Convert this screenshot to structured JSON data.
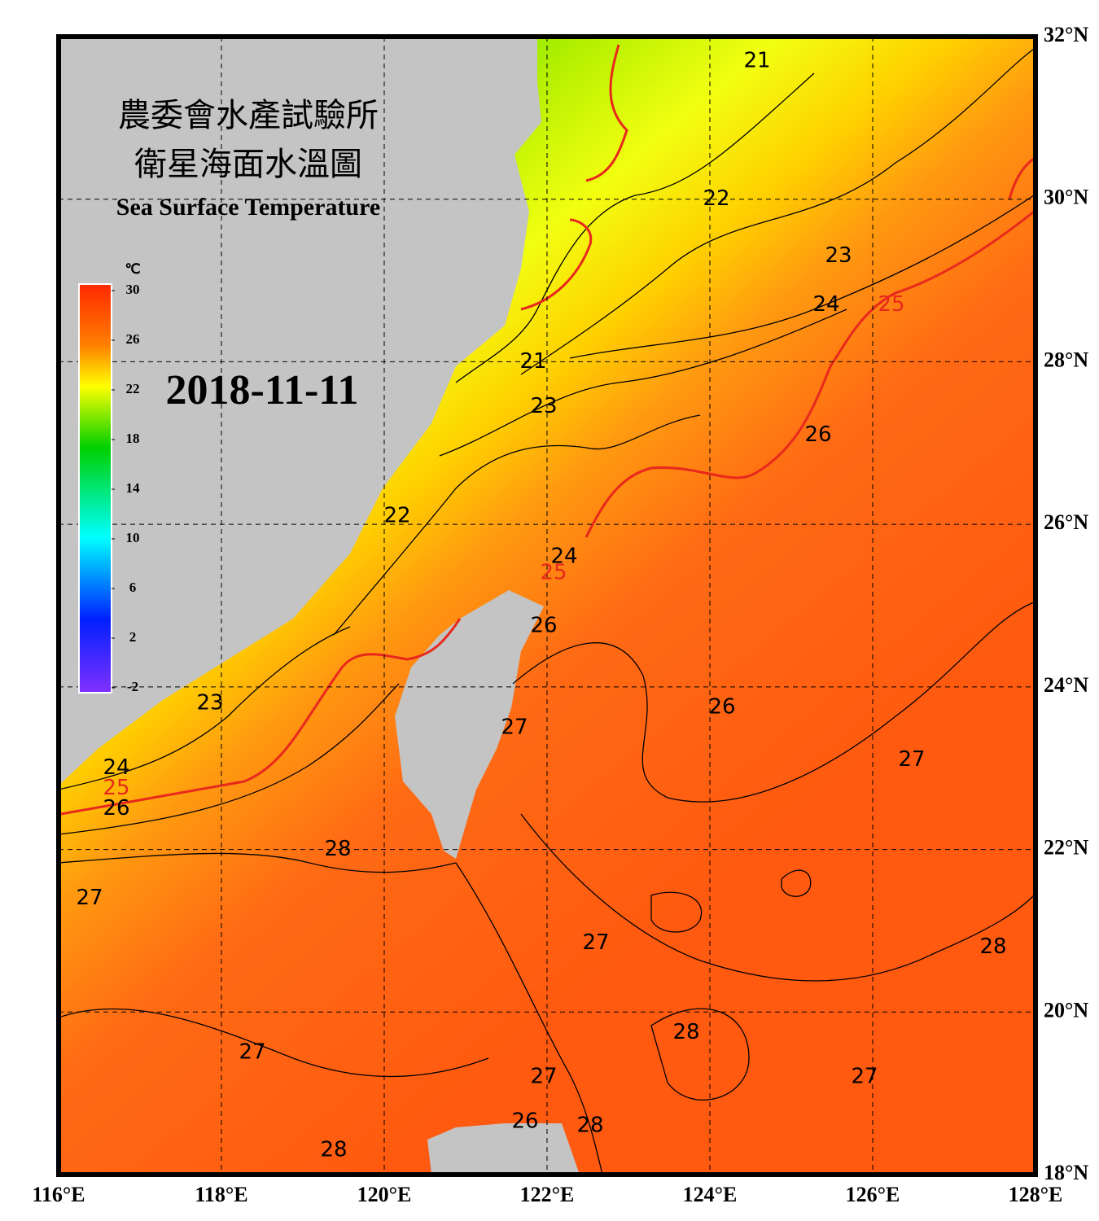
{
  "chart_data": {
    "type": "map",
    "title_zh_1": "農委會水產試驗所",
    "title_zh_2": "衛星海面水溫圖",
    "title": "Sea Surface Temperature",
    "date": "2018-11-11",
    "xlim": [
      116,
      128
    ],
    "ylim": [
      18,
      32
    ],
    "xticks": [
      {
        "value": 116,
        "label": "116°E"
      },
      {
        "value": 118,
        "label": "118°E"
      },
      {
        "value": 120,
        "label": "120°E"
      },
      {
        "value": 122,
        "label": "122°E"
      },
      {
        "value": 124,
        "label": "124°E"
      },
      {
        "value": 126,
        "label": "126°E"
      },
      {
        "value": 128,
        "label": "128°E"
      }
    ],
    "yticks": [
      {
        "value": 18,
        "label": "18°N"
      },
      {
        "value": 20,
        "label": "20°N"
      },
      {
        "value": 22,
        "label": "22°N"
      },
      {
        "value": 24,
        "label": "24°N"
      },
      {
        "value": 26,
        "label": "26°N"
      },
      {
        "value": 28,
        "label": "28°N"
      },
      {
        "value": 30,
        "label": "30°N"
      },
      {
        "value": 32,
        "label": "32°N"
      }
    ],
    "grid": true,
    "colorbar": {
      "unit": "℃",
      "lim": [
        -2,
        30
      ],
      "ticks": [
        30,
        26,
        22,
        18,
        14,
        10,
        6,
        2,
        -2
      ]
    },
    "highlight_contour": {
      "value": 25,
      "color": "#e8281c"
    },
    "contour_labels": [
      {
        "value": 21,
        "lon": 124.58,
        "lat": 31.7
      },
      {
        "value": 22,
        "lon": 124.08,
        "lat": 30.0
      },
      {
        "value": 23,
        "lon": 125.58,
        "lat": 29.3
      },
      {
        "value": 24,
        "lon": 125.43,
        "lat": 28.7
      },
      {
        "value": 25,
        "lon": 126.23,
        "lat": 28.7
      },
      {
        "value": 21,
        "lon": 121.83,
        "lat": 28.0
      },
      {
        "value": 23,
        "lon": 121.96,
        "lat": 27.45
      },
      {
        "value": 26,
        "lon": 125.33,
        "lat": 27.1
      },
      {
        "value": 22,
        "lon": 120.16,
        "lat": 26.1
      },
      {
        "value": 24,
        "lon": 122.21,
        "lat": 25.6
      },
      {
        "value": 25,
        "lon": 122.08,
        "lat": 25.4
      },
      {
        "value": 26,
        "lon": 121.96,
        "lat": 24.75
      },
      {
        "value": 23,
        "lon": 117.86,
        "lat": 23.8
      },
      {
        "value": 26,
        "lon": 124.15,
        "lat": 23.75
      },
      {
        "value": 27,
        "lon": 121.6,
        "lat": 23.5
      },
      {
        "value": 27,
        "lon": 126.48,
        "lat": 23.1
      },
      {
        "value": 24,
        "lon": 116.71,
        "lat": 23.0
      },
      {
        "value": 25,
        "lon": 116.71,
        "lat": 22.75
      },
      {
        "value": 26,
        "lon": 116.71,
        "lat": 22.5
      },
      {
        "value": 28,
        "lon": 119.43,
        "lat": 22.0
      },
      {
        "value": 27,
        "lon": 116.38,
        "lat": 21.4
      },
      {
        "value": 27,
        "lon": 122.6,
        "lat": 20.85
      },
      {
        "value": 28,
        "lon": 127.48,
        "lat": 20.8
      },
      {
        "value": 28,
        "lon": 123.71,
        "lat": 19.75
      },
      {
        "value": 27,
        "lon": 118.38,
        "lat": 19.5
      },
      {
        "value": 27,
        "lon": 121.96,
        "lat": 19.2
      },
      {
        "value": 27,
        "lon": 125.9,
        "lat": 19.2
      },
      {
        "value": 26,
        "lon": 121.73,
        "lat": 18.65
      },
      {
        "value": 28,
        "lon": 122.53,
        "lat": 18.6
      },
      {
        "value": 28,
        "lon": 119.38,
        "lat": 18.3
      }
    ]
  }
}
